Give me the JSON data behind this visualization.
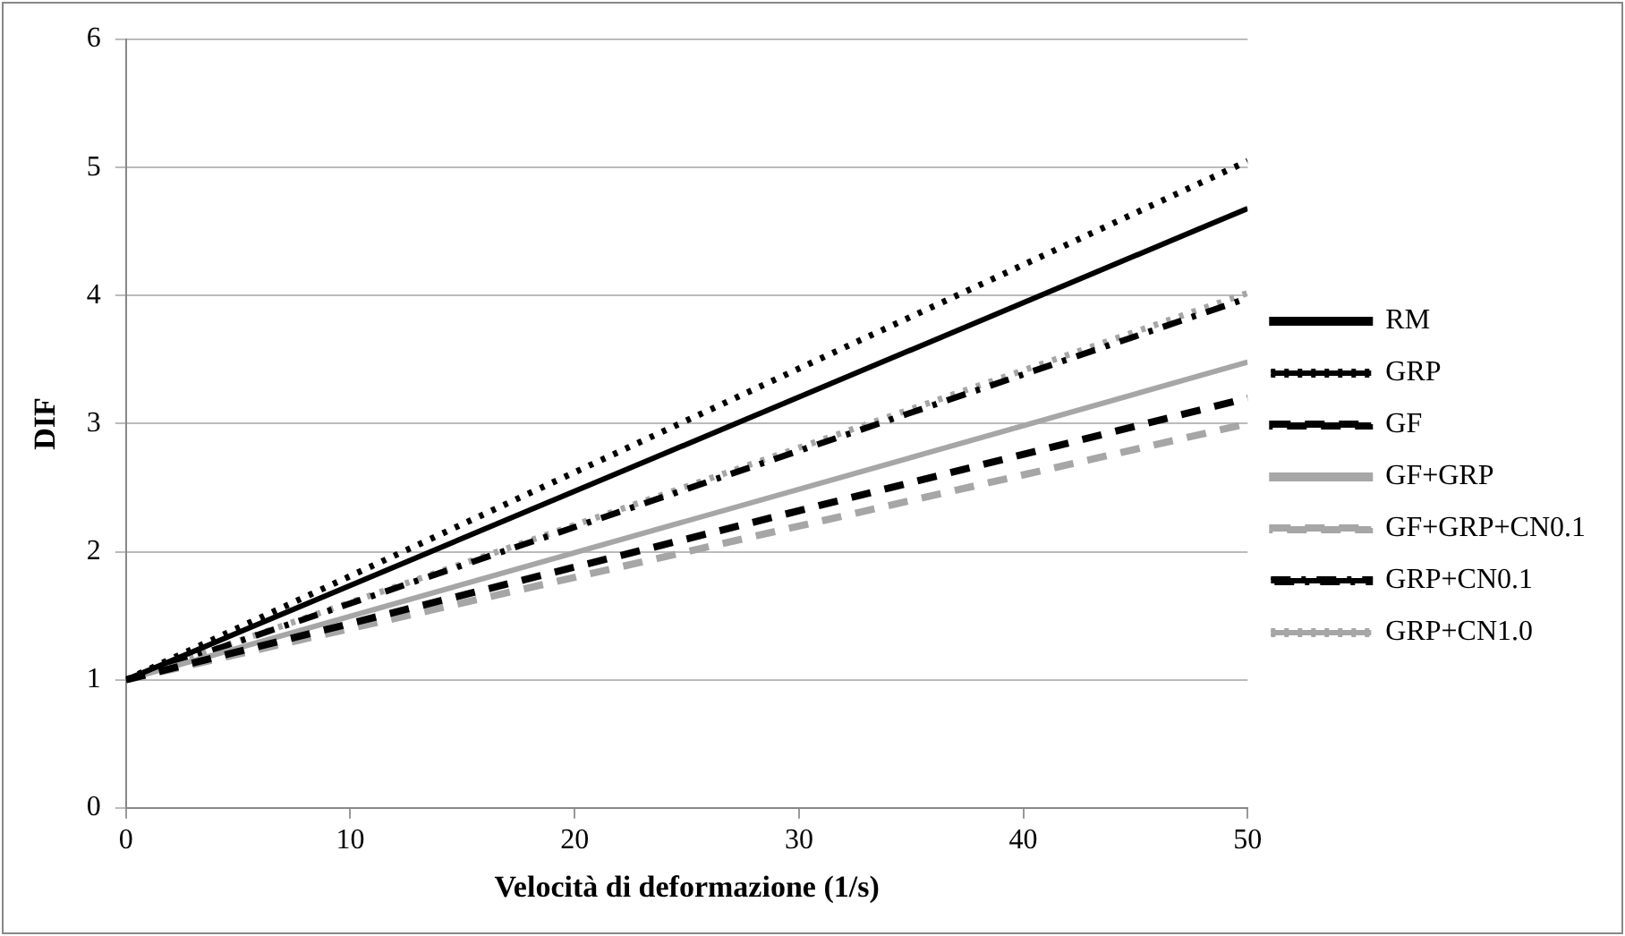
{
  "chart_data": {
    "type": "line",
    "xlabel": "Velocità di deformazione (1/s)",
    "ylabel": "DIF",
    "x": [
      0,
      50
    ],
    "series": [
      {
        "name": "RM",
        "color": "#000000",
        "values": [
          1,
          4.68
        ],
        "line_style": "solid"
      },
      {
        "name": "GRP",
        "color": "#000000",
        "values": [
          1,
          5.05
        ],
        "line_style": "dotted"
      },
      {
        "name": "GF",
        "color": "#000000",
        "values": [
          1,
          3.2
        ],
        "line_style": "dashed"
      },
      {
        "name": "GF+GRP",
        "color": "#a6a6a6",
        "values": [
          1,
          3.48
        ],
        "line_style": "solid"
      },
      {
        "name": "GF+GRP+CN0.1",
        "color": "#a6a6a6",
        "values": [
          1,
          3.0
        ],
        "line_style": "dashed"
      },
      {
        "name": "GRP+CN0.1",
        "color": "#000000",
        "values": [
          1,
          3.98
        ],
        "line_style": "dashdot"
      },
      {
        "name": "GRP+CN1.0",
        "color": "#a6a6a6",
        "values": [
          1,
          4.02
        ],
        "line_style": "dotted"
      }
    ],
    "xlim": [
      0,
      50
    ],
    "xticks": [
      0,
      10,
      20,
      30,
      40,
      50
    ],
    "ylim": [
      0,
      6
    ],
    "yticks": [
      0,
      1,
      2,
      3,
      4,
      5,
      6
    ],
    "grid": "y",
    "legend": "right",
    "marker": "none"
  }
}
